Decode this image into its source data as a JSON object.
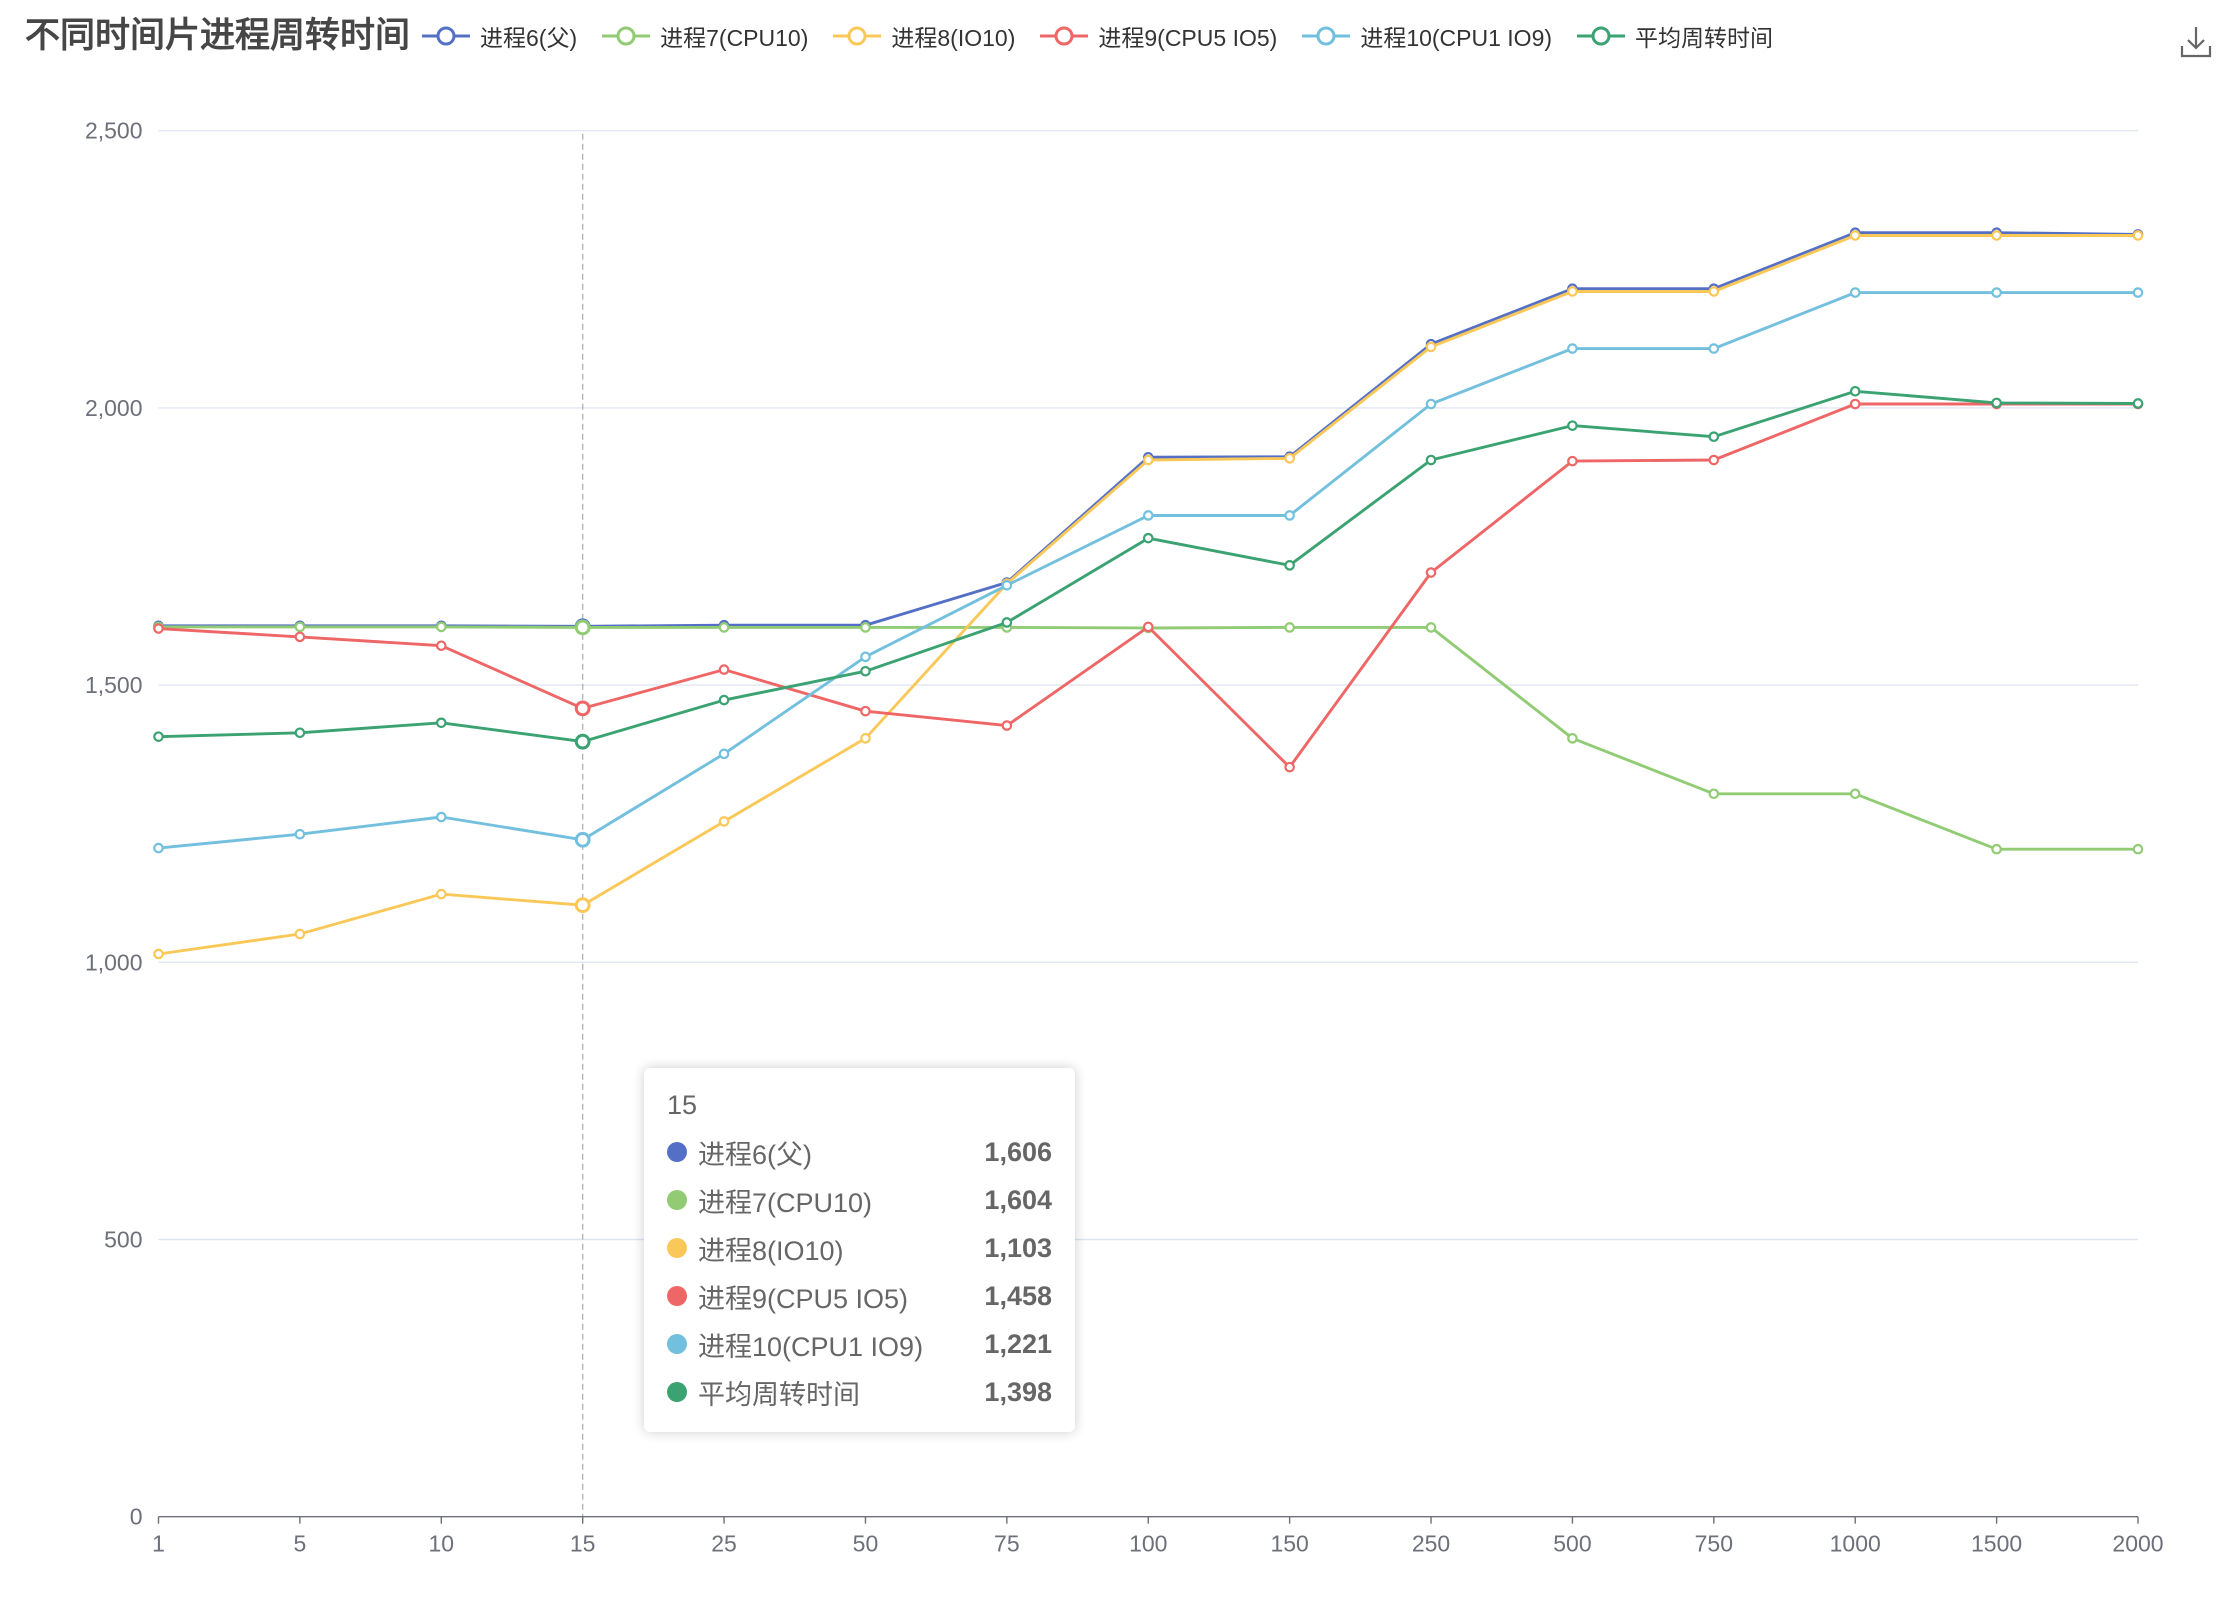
{
  "chart_data": {
    "type": "line",
    "title": "不同时间片进程周转时间",
    "categories": [
      "1",
      "5",
      "10",
      "15",
      "25",
      "50",
      "75",
      "100",
      "150",
      "250",
      "500",
      "750",
      "1000",
      "1500",
      "2000"
    ],
    "ylim": [
      0,
      2500
    ],
    "y_ticks": [
      0,
      500,
      1000,
      1500,
      2000,
      2500
    ],
    "y_tick_labels": [
      "0",
      "500",
      "1,000",
      "1,500",
      "2,000",
      "2,500"
    ],
    "grid": true,
    "legend": "top-center",
    "series": [
      {
        "name": "进程6(父)",
        "color": "#5470c6",
        "values": [
          1607,
          1607,
          1607,
          1606,
          1608,
          1608,
          1685,
          1911,
          1912,
          2115,
          2215,
          2215,
          2316,
          2316,
          2313
        ]
      },
      {
        "name": "进程7(CPU10)",
        "color": "#91cc75",
        "values": [
          1605,
          1605,
          1605,
          1604,
          1604,
          1604,
          1604,
          1603,
          1604,
          1604,
          1404,
          1304,
          1304,
          1204,
          1204
        ]
      },
      {
        "name": "进程8(IO10)",
        "color": "#fac858",
        "values": [
          1015,
          1051,
          1123,
          1103,
          1254,
          1404,
          1683,
          1906,
          1909,
          2110,
          2210,
          2210,
          2311,
          2311,
          2311
        ]
      },
      {
        "name": "进程9(CPU5 IO5)",
        "color": "#ee6666",
        "values": [
          1602,
          1587,
          1571,
          1458,
          1528,
          1453,
          1427,
          1605,
          1352,
          1703,
          1904,
          1906,
          2007,
          2007,
          2007
        ]
      },
      {
        "name": "进程10(CPU1 IO9)",
        "color": "#73c0de",
        "values": [
          1206,
          1231,
          1262,
          1221,
          1376,
          1551,
          1680,
          1806,
          1806,
          2007,
          2107,
          2107,
          2208,
          2208,
          2208
        ]
      },
      {
        "name": "平均周转时间",
        "color": "#3ba272",
        "values": [
          1407,
          1414,
          1432,
          1398,
          1473,
          1525,
          1613,
          1765,
          1716,
          1906,
          1968,
          1948,
          2030,
          2009,
          2008
        ]
      }
    ]
  },
  "tooltip": {
    "category": "15",
    "rows": [
      {
        "name": "进程6(父)",
        "value": "1,606"
      },
      {
        "name": "进程7(CPU10)",
        "value": "1,604"
      },
      {
        "name": "进程8(IO10)",
        "value": "1,103"
      },
      {
        "name": "进程9(CPU5 IO5)",
        "value": "1,458"
      },
      {
        "name": "进程10(CPU1 IO9)",
        "value": "1,221"
      },
      {
        "name": "平均周转时间",
        "value": "1,398"
      }
    ]
  },
  "toolbox": {
    "download_icon": "download-icon"
  }
}
